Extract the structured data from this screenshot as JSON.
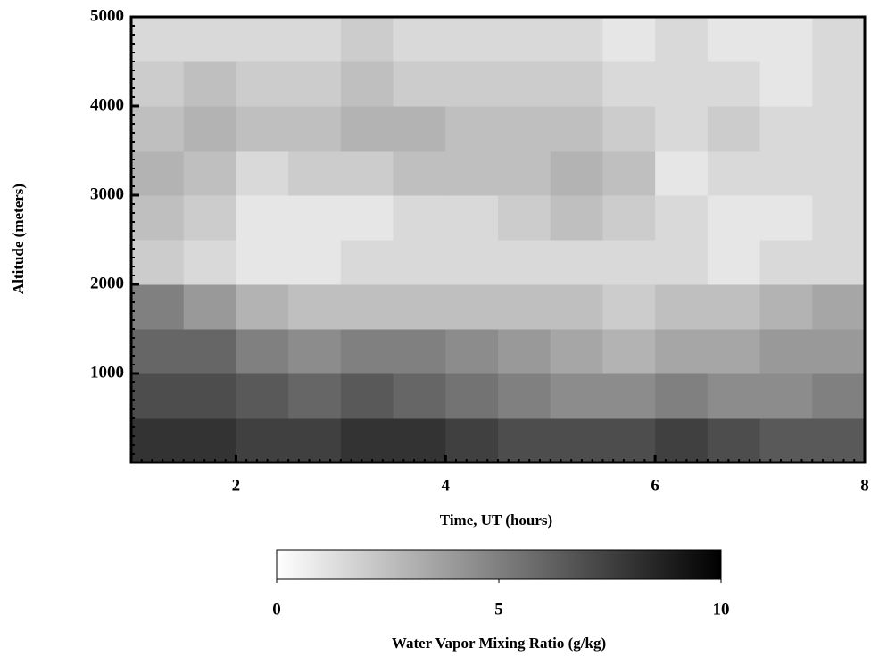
{
  "chart_data": {
    "type": "heatmap",
    "x_label": "Time, UT (hours)",
    "y_label": "Altitude (meters)",
    "x": [
      1.25,
      1.75,
      2.25,
      2.75,
      3.25,
      3.75,
      4.25,
      4.75,
      5.25,
      5.75,
      6.25,
      6.75,
      7.25,
      7.75
    ],
    "y": [
      250,
      750,
      1250,
      1750,
      2250,
      2750,
      3250,
      3750,
      4250,
      4750
    ],
    "z": [
      [
        8,
        8,
        7.5,
        7.5,
        8,
        8,
        7.5,
        7,
        7,
        7,
        7.5,
        7,
        6.5,
        6.5
      ],
      [
        7,
        7,
        6.5,
        6,
        6.5,
        6,
        5.5,
        5,
        4.5,
        4.5,
        5,
        4.5,
        4.5,
        5
      ],
      [
        6,
        6,
        5,
        4.5,
        5,
        5,
        4.5,
        4,
        3.5,
        3,
        3.5,
        3.5,
        4,
        4
      ],
      [
        5,
        4,
        3,
        2.5,
        2.5,
        2.5,
        2.5,
        2.5,
        2.5,
        2,
        2.5,
        2.5,
        3,
        3.5
      ],
      [
        2,
        1.5,
        1,
        1,
        1.5,
        1.5,
        1.5,
        1.5,
        1.5,
        1.5,
        1.5,
        1,
        1.5,
        1.5
      ],
      [
        2.5,
        2,
        1,
        1,
        1,
        1.5,
        1.5,
        2,
        2.5,
        2,
        1.5,
        1,
        1,
        1.5
      ],
      [
        3,
        2.5,
        1.5,
        2,
        2,
        2.5,
        2.5,
        2.5,
        3,
        2.5,
        1,
        1.5,
        1.5,
        1.5
      ],
      [
        2.5,
        3,
        2.5,
        2.5,
        3,
        3,
        2.5,
        2.5,
        2.5,
        2,
        1.5,
        2,
        1.5,
        1.5
      ],
      [
        2,
        2.5,
        2,
        2,
        2.5,
        2,
        2,
        2,
        2,
        1.5,
        1.5,
        1.5,
        1,
        1.5
      ],
      [
        1.5,
        1.5,
        1.5,
        1.5,
        2,
        1.5,
        1.5,
        1.5,
        1.5,
        1,
        1.5,
        1,
        1,
        1.5
      ]
    ],
    "xlim": [
      1,
      8
    ],
    "xticks": [
      2,
      4,
      6,
      8
    ],
    "ylim": [
      0,
      5000
    ],
    "yticks": [
      1000,
      2000,
      3000,
      4000,
      5000
    ],
    "colormap": [
      "#ffffff",
      "#000000"
    ],
    "colorbar_label": "Water Vapor Mixing Ratio (g/kg)",
    "clim": [
      0,
      10
    ],
    "colorbar_ticks": [
      0,
      5,
      10
    ]
  }
}
